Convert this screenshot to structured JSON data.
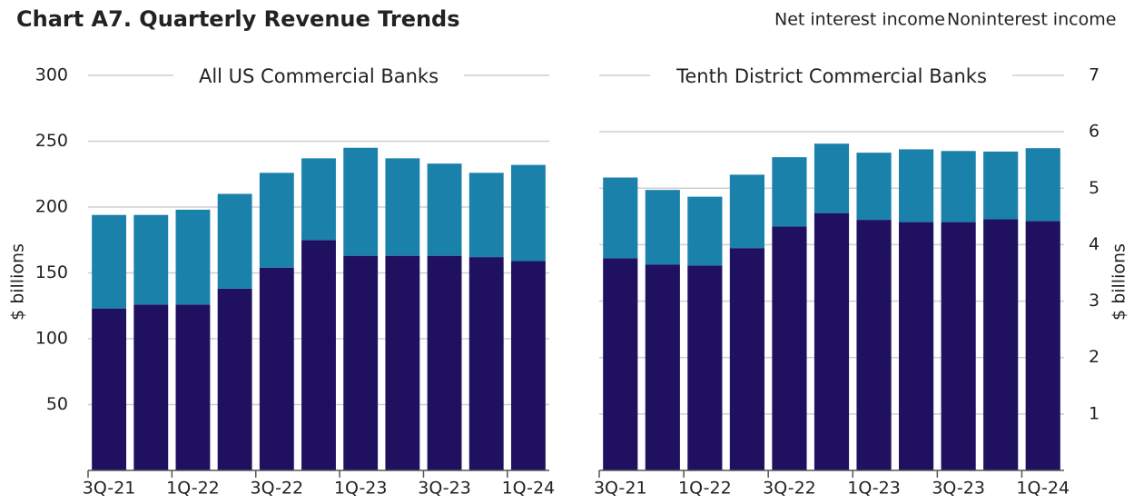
{
  "title": "Chart A7. Quarterly Revenue Trends",
  "chart_data": [
    {
      "type": "bar",
      "stacked": true,
      "title": "All US Commercial Banks",
      "y_label": "$ billions",
      "y_axis_side": "left",
      "categories": [
        "3Q-21",
        null,
        "1Q-22",
        null,
        "3Q-22",
        null,
        "1Q-23",
        null,
        "3Q-23",
        null,
        "1Q-24"
      ],
      "series": [
        {
          "name": "Net interest income",
          "color": "#1f1160",
          "values": [
            123,
            126,
            126,
            138,
            154,
            175,
            163,
            163,
            163,
            162,
            159
          ]
        },
        {
          "name": "Noninterest income",
          "color": "#1a82aa",
          "values": [
            71,
            68,
            72,
            72,
            72,
            62,
            82,
            74,
            70,
            64,
            73
          ]
        }
      ],
      "ylim": [
        0,
        300
      ],
      "yticks": [
        50,
        100,
        150,
        200,
        250,
        300
      ],
      "grid": true
    },
    {
      "type": "bar",
      "stacked": true,
      "title": "Tenth District Commercial Banks",
      "y_label": "$ billions",
      "y_axis_side": "right",
      "categories": [
        "3Q-21",
        null,
        "1Q-22",
        null,
        "3Q-22",
        null,
        "1Q-23",
        null,
        "3Q-23",
        null,
        "1Q-24"
      ],
      "series": [
        {
          "color": "#1f1160",
          "values": [
            3.76,
            3.65,
            3.63,
            3.94,
            4.32,
            4.56,
            4.44,
            4.4,
            4.4,
            4.45,
            4.42
          ]
        },
        {
          "color": "#1a82aa",
          "values": [
            1.43,
            1.32,
            1.22,
            1.3,
            1.23,
            1.23,
            1.19,
            1.29,
            1.26,
            1.2,
            1.29
          ]
        }
      ],
      "ylim": [
        0,
        7
      ],
      "yticks": [
        1,
        2,
        3,
        4,
        5,
        6,
        7
      ],
      "grid": true
    }
  ]
}
